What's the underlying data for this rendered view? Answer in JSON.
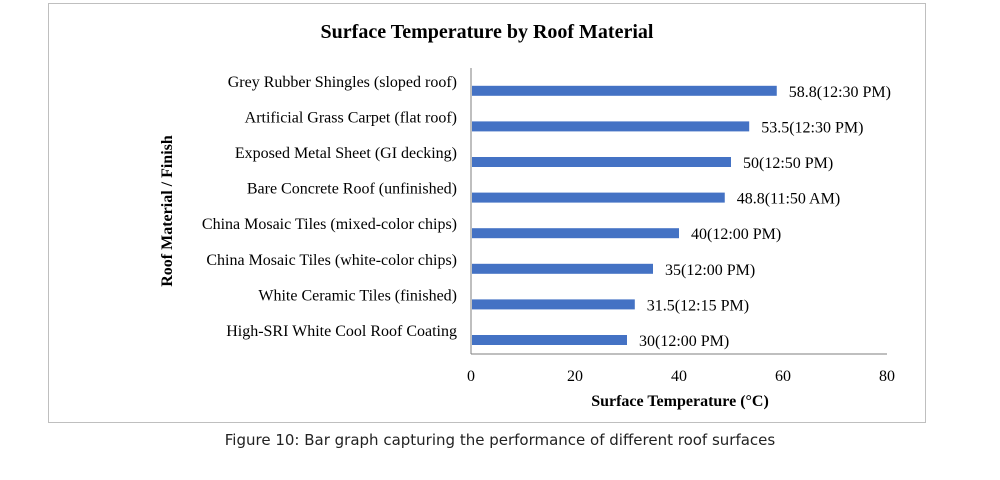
{
  "caption": "Figure 10: Bar graph capturing the performance of different roof surfaces",
  "colors": {
    "bar": "#4472c4",
    "axis": "#7f7f7f",
    "text": "#000000"
  },
  "chart_data": {
    "type": "bar",
    "orientation": "horizontal",
    "title": "Surface Temperature by Roof Material",
    "xlabel": "Surface Temperature (°C)",
    "ylabel": "Roof Material / Finish",
    "xlim": [
      0,
      80
    ],
    "xticks": [
      "0",
      "20",
      "40",
      "60",
      "80"
    ],
    "grid": false,
    "categories": [
      "Grey Rubber Shingles (sloped roof)",
      "Artificial Grass Carpet (flat roof)",
      "Exposed Metal Sheet (GI decking)",
      "Bare Concrete Roof (unfinished)",
      "China Mosaic Tiles (mixed-color chips)",
      "China Mosaic Tiles (white-color chips)",
      "White Ceramic Tiles (finished)",
      "High-SRI White Cool Roof Coating"
    ],
    "values": [
      58.8,
      53.5,
      50,
      48.8,
      40,
      35,
      31.5,
      30
    ],
    "data_labels": [
      "58.8(12:30 PM)",
      "53.5(12:30 PM)",
      "50(12:50 PM)",
      "48.8(11:50 AM)",
      "40(12:00 PM)",
      "35(12:00 PM)",
      "31.5(12:15 PM)",
      "30(12:00 PM)"
    ]
  }
}
